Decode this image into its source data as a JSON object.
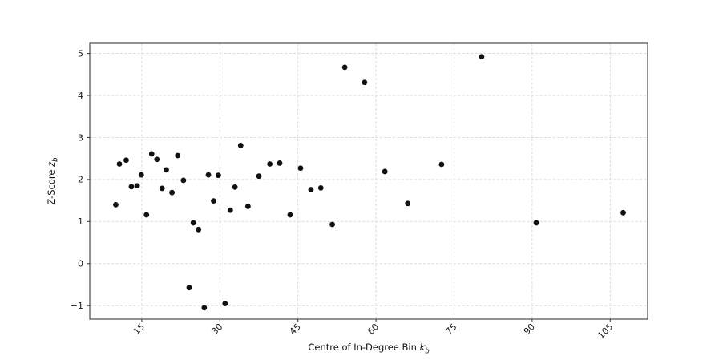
{
  "chart_data": {
    "type": "scatter",
    "title": "",
    "xlabel": "Centre of In-Degree Bin k̄b",
    "xlabel_parts": {
      "prefix": "Centre of In-Degree Bin ",
      "symbol": "k̄",
      "subscript": "b"
    },
    "ylabel": "Z-Score zb",
    "ylabel_parts": {
      "prefix": "Z-Score ",
      "symbol": "z",
      "subscript": "b"
    },
    "xlim": [
      5,
      112.2
    ],
    "ylim": [
      -1.32,
      5.24
    ],
    "xticks": [
      15,
      30,
      45,
      60,
      75,
      90,
      105
    ],
    "yticks": [
      -1,
      0,
      1,
      2,
      3,
      4,
      5
    ],
    "xtick_rotation": 45,
    "grid": true,
    "grid_style": "dashed",
    "legend": "none",
    "marker": {
      "shape": "circle",
      "color": "#111111",
      "radius": 3.4
    },
    "points": [
      [
        10.0,
        1.4
      ],
      [
        10.7,
        2.37
      ],
      [
        12.0,
        2.46
      ],
      [
        13.0,
        1.83
      ],
      [
        14.1,
        1.85
      ],
      [
        14.9,
        2.11
      ],
      [
        15.9,
        1.16
      ],
      [
        16.9,
        2.61
      ],
      [
        17.9,
        2.48
      ],
      [
        18.9,
        1.79
      ],
      [
        19.7,
        2.23
      ],
      [
        20.8,
        1.69
      ],
      [
        21.9,
        2.57
      ],
      [
        23.0,
        1.98
      ],
      [
        24.1,
        -0.57
      ],
      [
        24.9,
        0.97
      ],
      [
        25.9,
        0.81
      ],
      [
        27.0,
        -1.05
      ],
      [
        27.8,
        2.11
      ],
      [
        28.8,
        1.49
      ],
      [
        29.7,
        2.1
      ],
      [
        31.0,
        -0.95
      ],
      [
        32.0,
        1.27
      ],
      [
        32.9,
        1.82
      ],
      [
        34.0,
        2.81
      ],
      [
        35.4,
        1.36
      ],
      [
        37.5,
        2.08
      ],
      [
        39.6,
        2.37
      ],
      [
        41.5,
        2.39
      ],
      [
        43.5,
        1.16
      ],
      [
        45.5,
        2.27
      ],
      [
        47.5,
        1.76
      ],
      [
        49.4,
        1.8
      ],
      [
        51.6,
        0.93
      ],
      [
        54.0,
        4.67
      ],
      [
        57.8,
        4.31
      ],
      [
        61.7,
        2.19
      ],
      [
        66.1,
        1.43
      ],
      [
        72.6,
        2.36
      ],
      [
        80.3,
        4.92
      ],
      [
        90.8,
        0.97
      ],
      [
        107.5,
        1.21
      ]
    ]
  },
  "colors": {
    "marker": "#111111",
    "grid": "#d8d8d8",
    "spine": "#4a4a4a",
    "tick": "#333333",
    "tick_label": "#1a1a1a",
    "background": "#ffffff"
  }
}
